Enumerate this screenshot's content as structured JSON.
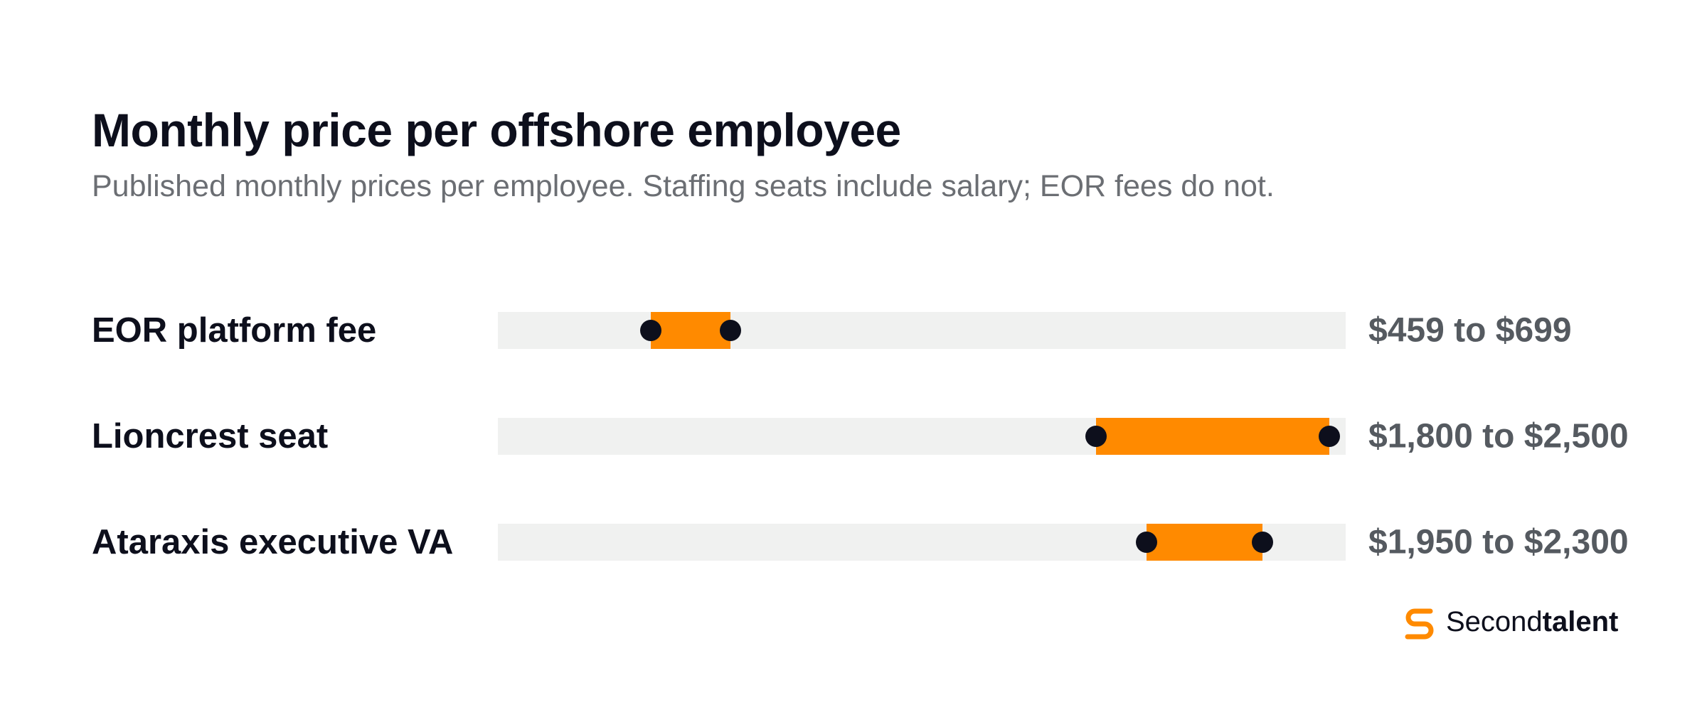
{
  "chart_data": {
    "type": "range",
    "title": "Monthly price per offshore employee",
    "subtitle": "Published monthly prices per employee. Staffing seats include salary; EOR fees do not.",
    "categories": [
      "EOR platform fee",
      "Lioncrest seat",
      "Ataraxis executive VA"
    ],
    "low": [
      459,
      1800,
      1950
    ],
    "high": [
      699,
      2500,
      2300
    ],
    "value_labels": [
      "$459 to $699",
      "$1,800 to $2,500",
      "$1,950 to $2,300"
    ],
    "xlim": [
      0,
      2550
    ],
    "color": "#ff8a00",
    "dot_color": "#0d0f1c",
    "track_color": "#f0f1f0"
  },
  "brand": {
    "name_regular": "Second",
    "name_bold": "talent"
  }
}
